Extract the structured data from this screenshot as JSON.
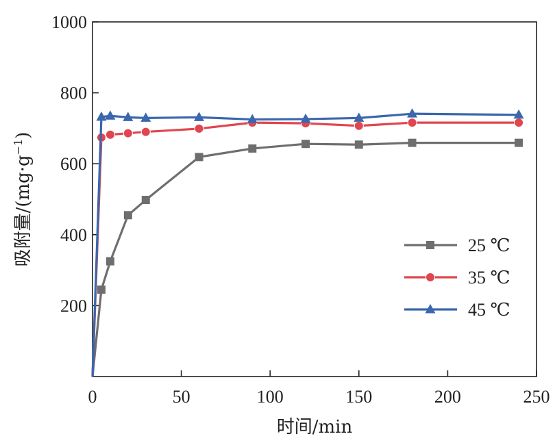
{
  "chart_data": {
    "type": "line",
    "xlabel": "时间/min",
    "ylabel_main": "吸附量/(mg·g",
    "ylabel_sup": "−1",
    "ylabel_close": ")",
    "xlim": [
      0,
      250
    ],
    "ylim": [
      0,
      1000
    ],
    "xticks": [
      0,
      50,
      100,
      150,
      200,
      250
    ],
    "yticks": [
      200,
      400,
      600,
      800,
      1000
    ],
    "grid": false,
    "legend_position": "center-right",
    "series": [
      {
        "name": "25 ℃",
        "color": "#6e6e6e",
        "marker": "square",
        "x": [
          0,
          5,
          10,
          20,
          30,
          60,
          90,
          120,
          150,
          180,
          240
        ],
        "y": [
          0,
          245,
          325,
          455,
          498,
          619,
          643,
          656,
          654,
          659,
          659
        ]
      },
      {
        "name": "35 ℃",
        "color": "#e0464f",
        "marker": "circle",
        "x": [
          0,
          5,
          10,
          20,
          30,
          60,
          90,
          120,
          150,
          180,
          240
        ],
        "y": [
          0,
          674,
          682,
          686,
          690,
          699,
          716,
          714,
          707,
          716,
          716
        ]
      },
      {
        "name": "45 ℃",
        "color": "#3a67ad",
        "marker": "triangle",
        "x": [
          0,
          5,
          10,
          20,
          30,
          60,
          90,
          120,
          150,
          180,
          240
        ],
        "y": [
          0,
          732,
          735,
          731,
          729,
          731,
          725,
          726,
          729,
          741,
          738
        ]
      }
    ]
  }
}
